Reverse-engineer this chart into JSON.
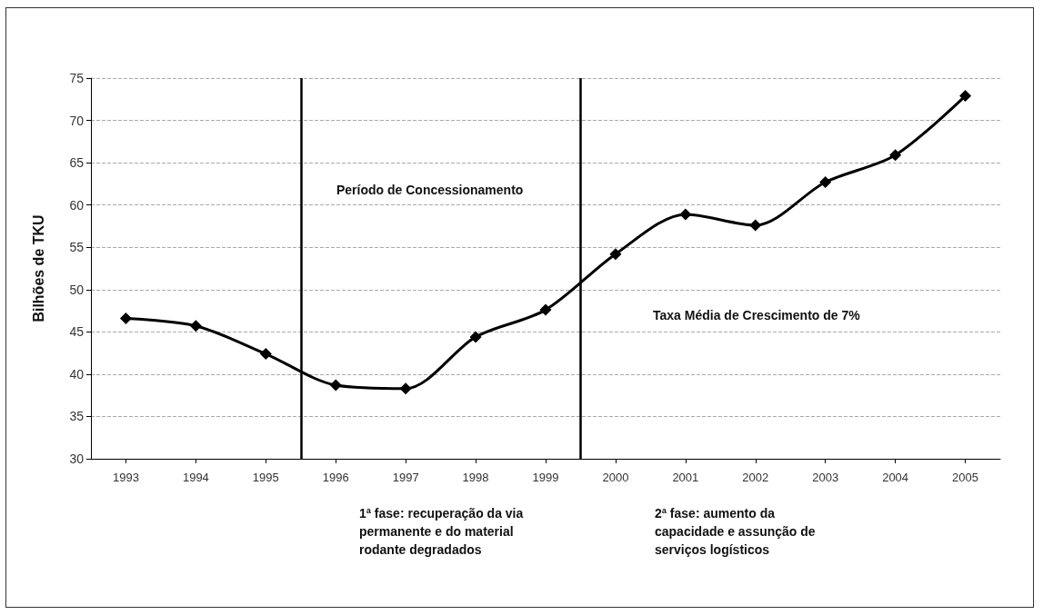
{
  "chart_data": {
    "type": "line",
    "ylabel": "Bilhões de TKU",
    "x": [
      1993,
      1994,
      1995,
      1996,
      1997,
      1998,
      1999,
      2000,
      2001,
      2002,
      2003,
      2004,
      2005
    ],
    "series": [
      {
        "color": "#000000",
        "values": [
          46.6,
          45.7,
          42.4,
          38.7,
          38.3,
          44.4,
          47.6,
          54.2,
          58.9,
          57.6,
          62.7,
          65.9,
          72.9
        ]
      }
    ],
    "xlim": [
      1992.5,
      2005.5
    ],
    "xticks": [
      1993,
      1994,
      1995,
      1996,
      1997,
      1998,
      1999,
      2000,
      2001,
      2002,
      2003,
      2004,
      2005
    ],
    "ylim": [
      30,
      75
    ],
    "yticks": [
      30,
      35,
      40,
      45,
      50,
      55,
      60,
      65,
      70,
      75
    ],
    "grid": "y",
    "marker": "diamond",
    "line_style": "solid",
    "ref_lines": [
      {
        "axis": "x",
        "value": 1995.5,
        "color": "#000000"
      },
      {
        "axis": "x",
        "value": 1999.5,
        "color": "#000000"
      }
    ],
    "annotations": [
      "Período de Concessionamento",
      "Taxa Média de Crescimento de 7%",
      "1ª fase: recuperação da via permanente e do material rodante degradados",
      "2ª fase: aumento da capacidade e assunção de serviços logísticos"
    ]
  }
}
